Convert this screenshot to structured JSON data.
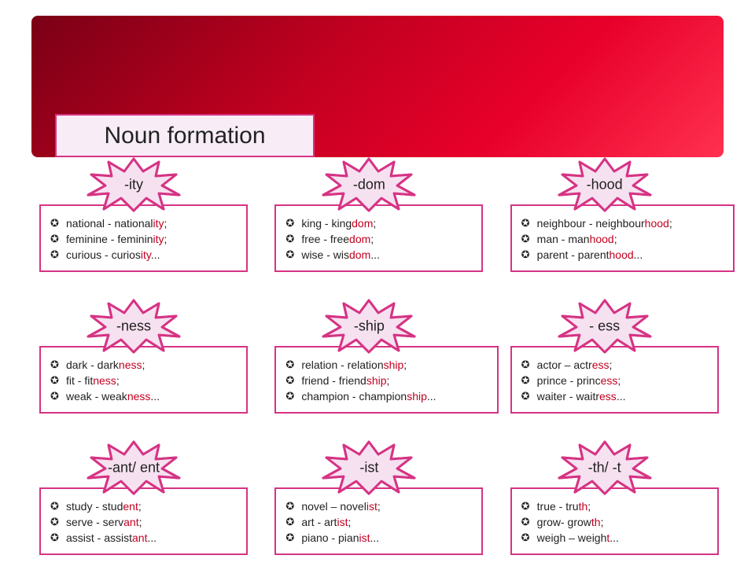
{
  "title": "Noun formation",
  "colors": {
    "border": "#d63384",
    "suffix": "#c10020",
    "title_bg": "#f8edf6",
    "banner_stops": [
      "#7a0015",
      "#c10020",
      "#e8002a",
      "#ff3050"
    ]
  },
  "cards": [
    {
      "suffix": "-ity",
      "items": [
        {
          "pre": "national - national",
          "hl": "ity",
          "post": ";"
        },
        {
          "pre": "feminine - feminin",
          "hl": "ity",
          "post": ";"
        },
        {
          "pre": "curious - curios",
          "hl": "ity",
          "post": "..."
        }
      ]
    },
    {
      "suffix": "-dom",
      "items": [
        {
          "pre": "king - king",
          "hl": "dom",
          "post": ";"
        },
        {
          "pre": "free - free",
          "hl": "dom",
          "post": ";"
        },
        {
          "pre": "wise - wis",
          "hl": "dom",
          "post": "..."
        }
      ]
    },
    {
      "suffix": "-hood",
      "items": [
        {
          "pre": "neighbour  - neighbour",
          "hl": "hood",
          "post": ";"
        },
        {
          "pre": "man - man",
          "hl": "hood",
          "post": ";"
        },
        {
          "pre": "parent - parent",
          "hl": "hood",
          "post": "..."
        }
      ]
    },
    {
      "suffix": "-ness",
      "items": [
        {
          "pre": "dark - dark",
          "hl": "ness",
          "post": ";"
        },
        {
          "pre": "fit - fit",
          "hl": "ness",
          "post": ";"
        },
        {
          "pre": "weak - weak",
          "hl": "ness",
          "post": "..."
        }
      ]
    },
    {
      "suffix": "-ship",
      "items": [
        {
          "pre": "relation - relation",
          "hl": "ship",
          "post": ";"
        },
        {
          "pre": "friend - friend",
          "hl": "ship",
          "post": ";"
        },
        {
          "pre": "champion - champion",
          "hl": "ship",
          "post": "..."
        }
      ]
    },
    {
      "suffix": "- ess",
      "items": [
        {
          "pre": "actor – actr",
          "hl": "ess",
          "post": ";"
        },
        {
          "pre": "prince - princ",
          "hl": "ess",
          "post": ";"
        },
        {
          "pre": "waiter - waitr",
          "hl": "ess",
          "post": "..."
        }
      ]
    },
    {
      "suffix": "-ant/ ent",
      "items": [
        {
          "pre": "study - stud",
          "hl": "ent",
          "post": ";"
        },
        {
          "pre": "serve - serv",
          "hl": "ant",
          "post": ";"
        },
        {
          "pre": "assist - assist",
          "hl": "ant",
          "post": "..."
        }
      ]
    },
    {
      "suffix": "-ist",
      "items": [
        {
          "pre": "novel – novel",
          "hl": "ist",
          "post": ";"
        },
        {
          "pre": "art - art",
          "hl": "ist",
          "post": ";"
        },
        {
          "pre": "piano - pian",
          "hl": "ist",
          "post": "..."
        }
      ]
    },
    {
      "suffix": "-th/ -t",
      "items": [
        {
          "pre": "true - tru",
          "hl": "th",
          "post": ";"
        },
        {
          "pre": "grow- grow",
          "hl": "th",
          "post": ";"
        },
        {
          "pre": "weigh – weigh",
          "hl": "t",
          "post": "..."
        }
      ]
    }
  ]
}
